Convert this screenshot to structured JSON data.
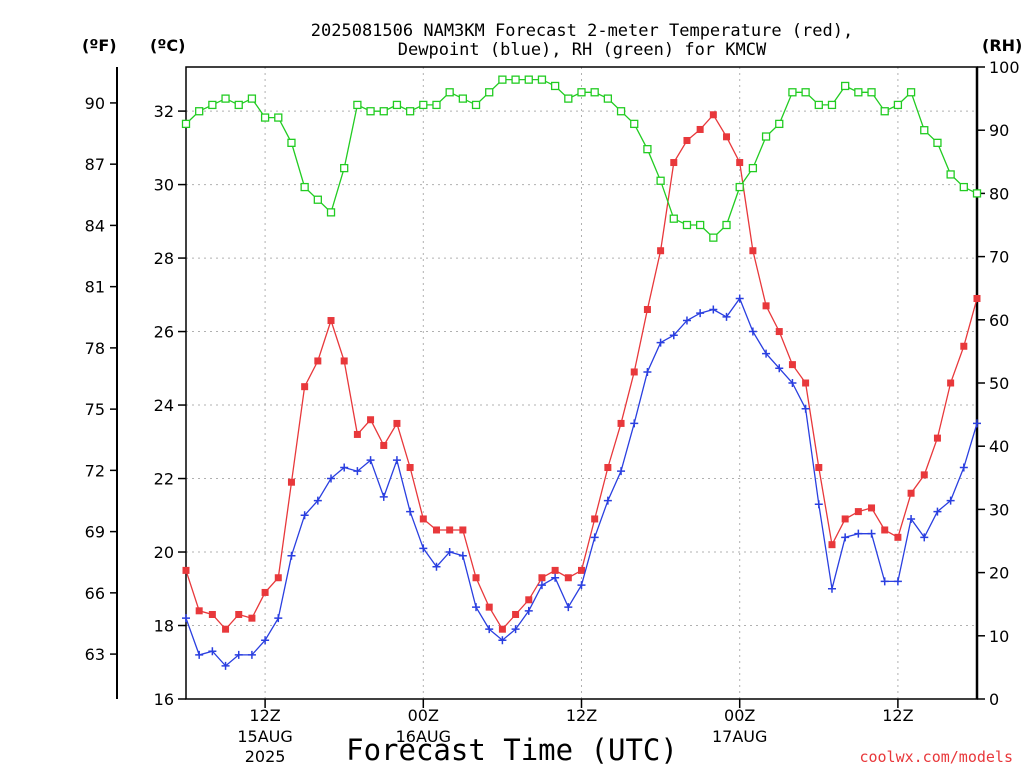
{
  "chart_data": {
    "type": "line",
    "title_line1": "2025081506 NAM3KM Forecast 2-meter Temperature (red),",
    "title_line2": "Dewpoint (blue), RH (green) for KMCW",
    "xlabel": "Forecast Time (UTC)",
    "unit_f": "(ºF)",
    "unit_c": "(ºC)",
    "unit_rh": "(RH)",
    "credit": "coolwx.com/models",
    "hour_range": [
      6,
      66
    ],
    "c_range": [
      16,
      33.2
    ],
    "rh_range": [
      0,
      100
    ],
    "c_ticks": [
      16,
      18,
      20,
      22,
      24,
      26,
      28,
      30,
      32
    ],
    "f_ticks": [
      63,
      66,
      69,
      72,
      75,
      78,
      81,
      84,
      87,
      90
    ],
    "rh_ticks": [
      0,
      10,
      20,
      30,
      40,
      50,
      60,
      70,
      80,
      90,
      100
    ],
    "x_ticks": [
      {
        "hour": 12,
        "l1": "12Z",
        "l2": "15AUG",
        "l3": "2025"
      },
      {
        "hour": 24,
        "l1": "00Z",
        "l2": "16AUG",
        "l3": ""
      },
      {
        "hour": 36,
        "l1": "12Z",
        "l2": "",
        "l3": ""
      },
      {
        "hour": 48,
        "l1": "00Z",
        "l2": "17AUG",
        "l3": ""
      },
      {
        "hour": 60,
        "l1": "12Z",
        "l2": "",
        "l3": ""
      }
    ],
    "colors": {
      "temp": "#e8383b",
      "dew": "#2a3fe0",
      "rh": "#22cc22",
      "grid": "#b0b0b0",
      "axis": "#000000"
    },
    "series": [
      {
        "name": "Temperature",
        "key": "temp",
        "unit": "C",
        "marker": "square",
        "values": [
          19.5,
          18.4,
          18.3,
          17.9,
          18.3,
          18.2,
          18.9,
          19.3,
          21.9,
          24.5,
          25.2,
          26.3,
          25.2,
          23.2,
          23.6,
          22.9,
          23.5,
          22.3,
          20.9,
          20.6,
          20.6,
          20.6,
          19.3,
          18.5,
          17.9,
          18.3,
          18.7,
          19.3,
          19.5,
          19.3,
          19.5,
          20.9,
          22.3,
          23.5,
          24.9,
          26.6,
          28.2,
          30.6,
          31.2,
          31.5,
          31.9,
          31.3,
          30.6,
          28.2,
          26.7,
          26.0,
          25.1,
          24.6,
          22.3,
          20.2,
          20.9,
          21.1,
          21.2,
          20.6,
          20.4,
          21.6,
          22.1,
          23.1,
          24.6,
          25.6,
          26.9
        ]
      },
      {
        "name": "Dewpoint",
        "key": "dew",
        "unit": "C",
        "marker": "plus",
        "values": [
          18.2,
          17.2,
          17.3,
          16.9,
          17.2,
          17.2,
          17.6,
          18.2,
          19.9,
          21.0,
          21.4,
          22.0,
          22.3,
          22.2,
          22.5,
          21.5,
          22.5,
          21.1,
          20.1,
          19.6,
          20.0,
          19.9,
          18.5,
          17.9,
          17.6,
          17.9,
          18.4,
          19.1,
          19.3,
          18.5,
          19.1,
          20.4,
          21.4,
          22.2,
          23.5,
          24.9,
          25.7,
          25.9,
          26.3,
          26.5,
          26.6,
          26.4,
          26.9,
          26.0,
          25.4,
          25.0,
          24.6,
          23.9,
          21.3,
          19.0,
          20.4,
          20.5,
          20.5,
          19.2,
          19.2,
          20.9,
          20.4,
          21.1,
          21.4,
          22.3,
          23.5
        ]
      },
      {
        "name": "RH",
        "key": "rh",
        "unit": "%",
        "marker": "hollow-square",
        "values": [
          91,
          93,
          94,
          95,
          94,
          95,
          92,
          92,
          88,
          81,
          79,
          77,
          84,
          94,
          93,
          93,
          94,
          93,
          94,
          94,
          96,
          95,
          94,
          96,
          98,
          98,
          98,
          98,
          97,
          95,
          96,
          96,
          95,
          93,
          91,
          87,
          82,
          76,
          75,
          75,
          73,
          75,
          81,
          84,
          89,
          91,
          96,
          96,
          94,
          94,
          97,
          96,
          96,
          93,
          94,
          96,
          90,
          88,
          83,
          81,
          80
        ]
      }
    ]
  }
}
